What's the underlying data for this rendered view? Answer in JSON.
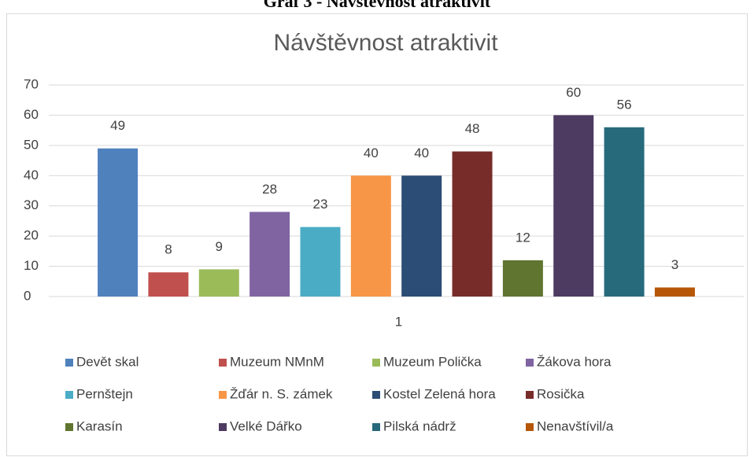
{
  "heading": "Graf 3 - Návštěvnost atraktivit",
  "chart_data": {
    "type": "bar",
    "title": "Návštěvnost atraktivit",
    "categories": [
      "1"
    ],
    "series": [
      {
        "name": "Devět skal",
        "color": "#4f81bd",
        "values": [
          49
        ]
      },
      {
        "name": "Muzeum NMnM",
        "color": "#c0504d",
        "values": [
          8
        ]
      },
      {
        "name": "Muzeum Polička",
        "color": "#9bbb59",
        "values": [
          9
        ]
      },
      {
        "name": "Žákova hora",
        "color": "#8064a2",
        "values": [
          28
        ]
      },
      {
        "name": "Pernštejn",
        "color": "#4bacc6",
        "values": [
          23
        ]
      },
      {
        "name": "Žďár n. S. zámek",
        "color": "#f79646",
        "values": [
          40
        ]
      },
      {
        "name": "Kostel Zelená hora",
        "color": "#2c4d75",
        "values": [
          40
        ]
      },
      {
        "name": "Rosička",
        "color": "#772c2a",
        "values": [
          48
        ]
      },
      {
        "name": "Karasín",
        "color": "#5f7530",
        "values": [
          12
        ]
      },
      {
        "name": "Velké Dářko",
        "color": "#4d3b62",
        "values": [
          60
        ]
      },
      {
        "name": "Pilská nádrž",
        "color": "#276a7c",
        "values": [
          56
        ]
      },
      {
        "name": "Nenavštívil/a",
        "color": "#b65708",
        "values": [
          3
        ]
      }
    ],
    "ylim": [
      0,
      70
    ],
    "yticks": [
      0,
      10,
      20,
      30,
      40,
      50,
      60,
      70
    ],
    "grid": true,
    "legend": "bottom"
  }
}
